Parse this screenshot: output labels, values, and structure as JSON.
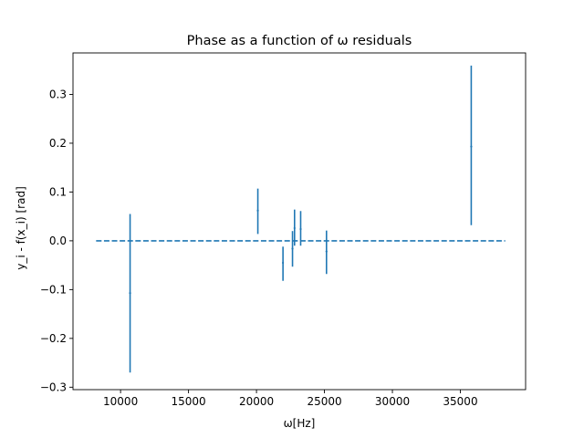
{
  "chart_data": {
    "type": "scatter",
    "title": "Phase as a function of ω residuals",
    "xlabel": "ω[Hz]",
    "ylabel": "y_i - f(x_i) [rad]",
    "xlim": [
      6500,
      39800
    ],
    "ylim": [
      -0.305,
      0.385
    ],
    "xticks": [
      10000,
      15000,
      20000,
      25000,
      30000,
      35000
    ],
    "yticks": [
      -0.3,
      -0.2,
      -0.1,
      0.0,
      0.1,
      0.2,
      0.3
    ],
    "grid": false,
    "color": "#1f77b4",
    "zero_line": {
      "x": [
        8200,
        38300
      ],
      "y": 0.0,
      "style": "dashed"
    },
    "points": [
      {
        "x": 10700,
        "y": -0.107,
        "yerr_low": -0.27,
        "yerr_high": 0.055
      },
      {
        "x": 20100,
        "y": 0.062,
        "yerr_low": 0.014,
        "yerr_high": 0.107
      },
      {
        "x": 21950,
        "y": -0.045,
        "yerr_low": -0.082,
        "yerr_high": -0.012
      },
      {
        "x": 22650,
        "y": -0.016,
        "yerr_low": -0.053,
        "yerr_high": 0.02
      },
      {
        "x": 22800,
        "y": 0.026,
        "yerr_low": -0.01,
        "yerr_high": 0.064
      },
      {
        "x": 23250,
        "y": 0.024,
        "yerr_low": -0.01,
        "yerr_high": 0.061
      },
      {
        "x": 25150,
        "y": -0.022,
        "yerr_low": -0.068,
        "yerr_high": 0.021
      },
      {
        "x": 35800,
        "y": 0.193,
        "yerr_low": 0.032,
        "yerr_high": 0.359
      }
    ]
  }
}
